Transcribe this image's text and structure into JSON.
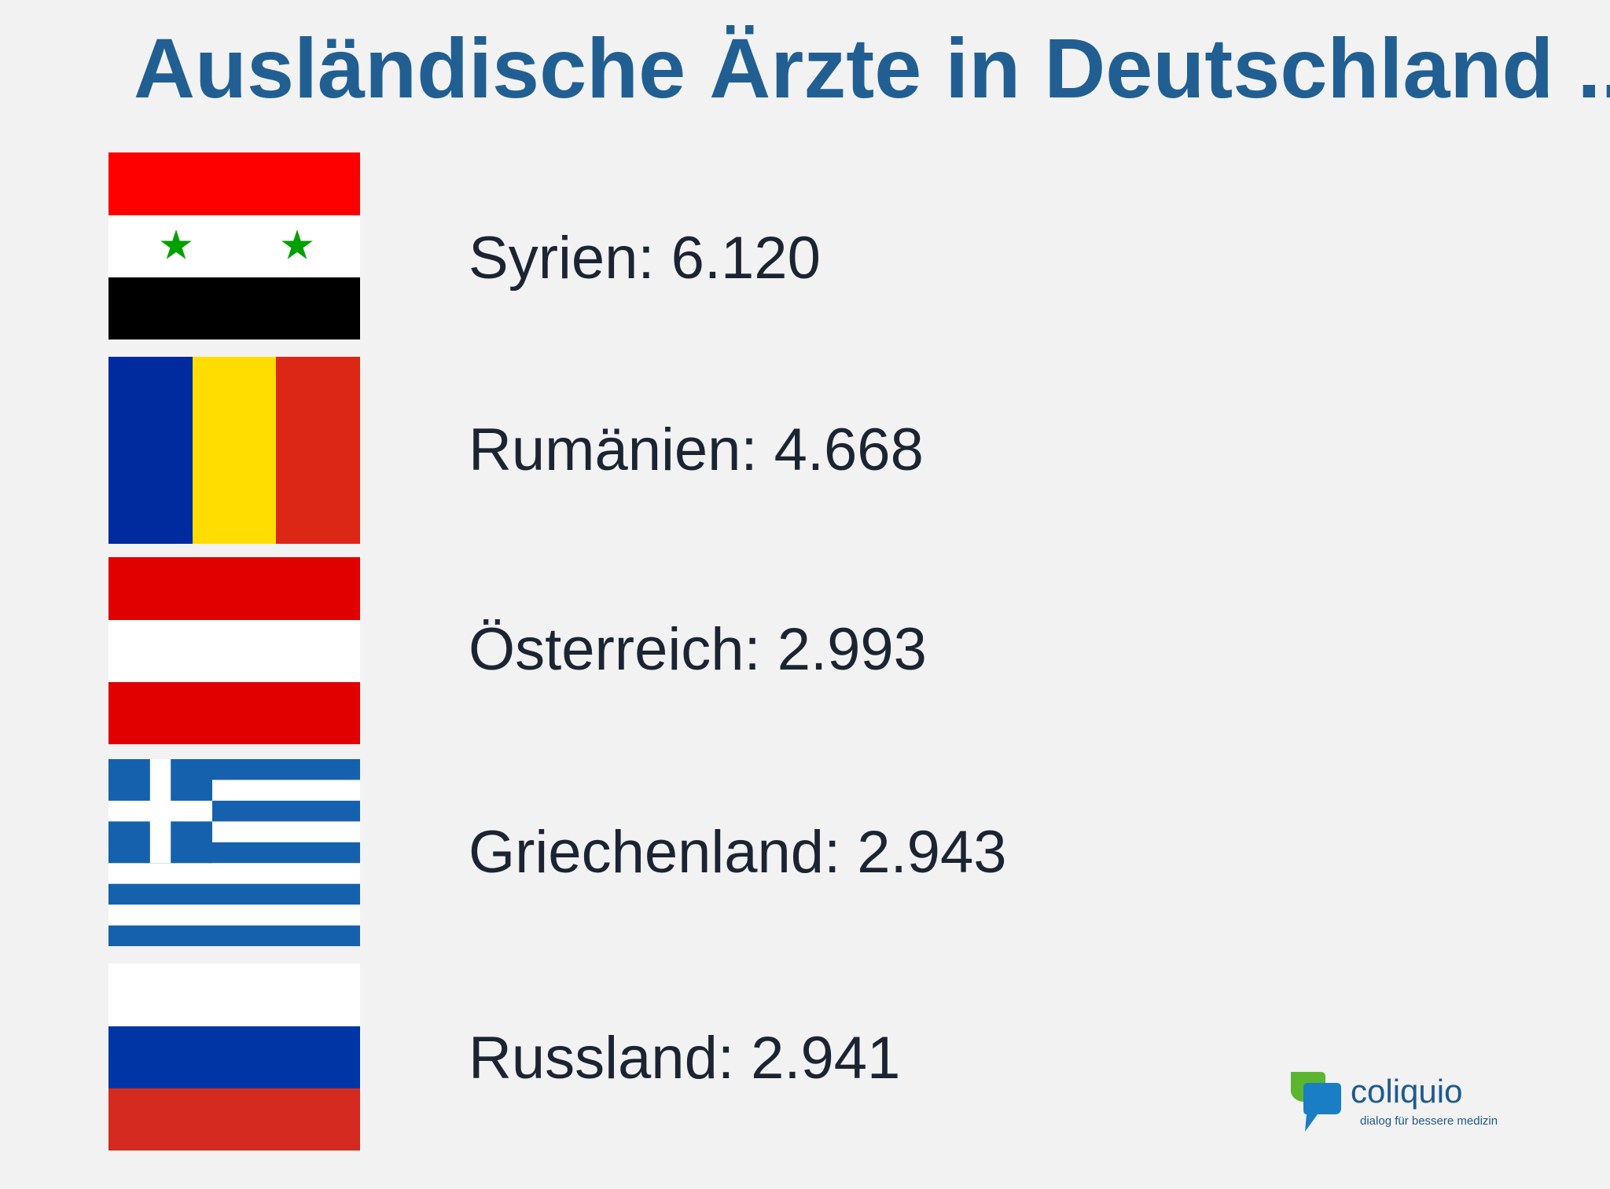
{
  "title": "Ausländische Ärzte in Deutschland ...",
  "countries": [
    {
      "label": "Syrien: 6.120",
      "flag_icon": "syria-flag-icon",
      "colors": [
        "#ff0000",
        "#ffffff",
        "#000000",
        "#00a000"
      ]
    },
    {
      "label": "Rumänien: 4.668",
      "flag_icon": "romania-flag-icon",
      "colors": [
        "#002b9f",
        "#ffdd00",
        "#dc2616"
      ]
    },
    {
      "label": "Österreich: 2.993",
      "flag_icon": "austria-flag-icon",
      "colors": [
        "#e00000",
        "#ffffff"
      ]
    },
    {
      "label": "Griechenland: 2.943",
      "flag_icon": "greece-flag-icon",
      "colors": [
        "#1561ad",
        "#ffffff"
      ]
    },
    {
      "label": "Russland: 2.941",
      "flag_icon": "russia-flag-icon",
      "colors": [
        "#ffffff",
        "#0035a6",
        "#d42a20"
      ]
    }
  ],
  "logo": {
    "name": "coliquio",
    "tagline": "dialog für bessere medizin",
    "colors": {
      "leaf": "#5cb52f",
      "bubble": "#1a7ec4",
      "text": "#1e5a8c"
    }
  },
  "colors": {
    "background": "#f2f2f2",
    "title": "#215f93",
    "text": "#1b2433"
  }
}
